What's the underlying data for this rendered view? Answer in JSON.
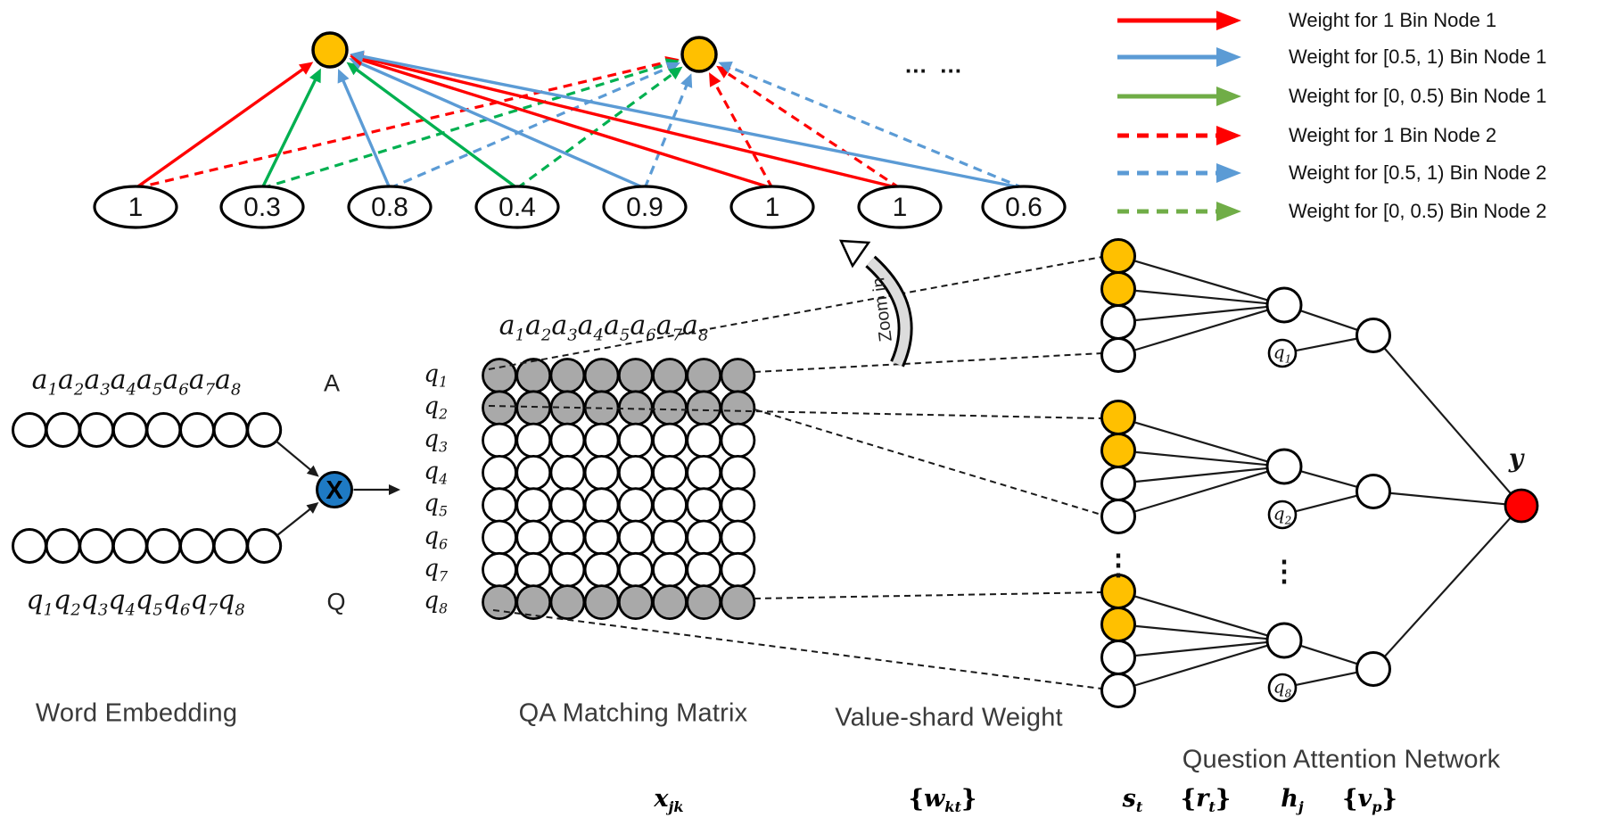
{
  "colors": {
    "red": "#FF0000",
    "blue": "#5B9BD5",
    "green": "#00B050",
    "legend_green": "#70AD47",
    "orange": "#FFC000",
    "x_node_blue": "#1E7AC4",
    "y_node_red": "#FF0000",
    "matrix_gray": "#A9A9A9",
    "line_black": "#1a1a1a"
  },
  "bin_graph": {
    "value_nodes": [
      {
        "value": "1",
        "bin": "red"
      },
      {
        "value": "0.3",
        "bin": "green"
      },
      {
        "value": "0.8",
        "bin": "blue"
      },
      {
        "value": "0.4",
        "bin": "green"
      },
      {
        "value": "0.9",
        "bin": "blue"
      },
      {
        "value": "1",
        "bin": "red"
      },
      {
        "value": "1",
        "bin": "red"
      },
      {
        "value": "0.6",
        "bin": "blue"
      }
    ],
    "ellipsis": "… …"
  },
  "legend": {
    "items": [
      {
        "label": "Weight for 1 Bin Node 1",
        "color": "red",
        "dashed": false
      },
      {
        "label": "Weight for [0.5, 1) Bin Node 1",
        "color": "blue",
        "dashed": false
      },
      {
        "label": "Weight for [0, 0.5)  Bin Node 1",
        "color": "legend_green",
        "dashed": false
      },
      {
        "label": "Weight for 1  Bin Node 2",
        "color": "red",
        "dashed": true
      },
      {
        "label": "Weight for [0.5, 1) Bin Node 2",
        "color": "blue",
        "dashed": true
      },
      {
        "label": "Weight for [0, 0.5) Bin Node 2",
        "color": "legend_green",
        "dashed": true
      }
    ]
  },
  "word_embedding": {
    "caption": "Word Embedding",
    "a_sequence": [
      "a1",
      "a2",
      "a3",
      "a4",
      "a5",
      "a6",
      "a7",
      "a8"
    ],
    "q_sequence": [
      "q1",
      "q2",
      "q3",
      "q4",
      "q5",
      "q6",
      "q7",
      "q8"
    ],
    "a_tag": "A",
    "q_tag": "Q",
    "operator": "X",
    "circles_per_row": 8
  },
  "matching_matrix": {
    "caption": "QA Matching Matrix",
    "symbol": "x_jk",
    "col_header": [
      "a1",
      "a2",
      "a3",
      "a4",
      "a5",
      "a6",
      "a7",
      "a8"
    ],
    "row_headers": [
      "q1",
      "q2",
      "q3",
      "q4",
      "q5",
      "q6",
      "q7",
      "q8"
    ],
    "shaded_rows": [
      0,
      1,
      7
    ],
    "rows": 8,
    "cols": 8
  },
  "zoom_note": "Zoom in",
  "value_shard": {
    "caption": "Value-shard Weight",
    "symbol": "{w_kt}",
    "groups": [
      [
        "orange",
        "orange",
        "white",
        "white"
      ],
      [
        "orange",
        "orange",
        "white",
        "white"
      ],
      [
        "orange",
        "orange",
        "white",
        "white"
      ]
    ],
    "dots": "⋮"
  },
  "attention": {
    "caption": "Question Attention Network",
    "unit_labels": [
      "q1",
      "q2",
      "q8"
    ],
    "dots": "⋮",
    "output_label": "y",
    "formulas": [
      "s_t",
      "{r_t}",
      "h_j",
      "{v_p}"
    ]
  }
}
